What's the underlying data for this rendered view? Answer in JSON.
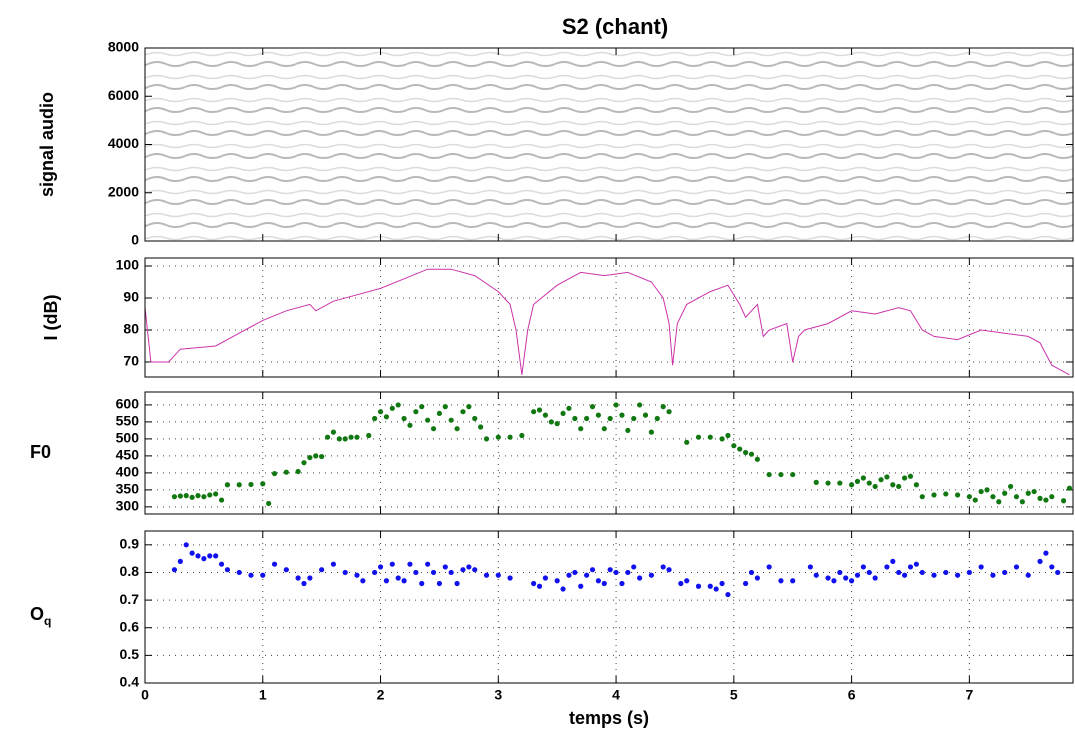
{
  "chart_data": [
    {
      "type": "spectrogram",
      "title": "S2   (chant)",
      "ylabel": "signal audio",
      "xlim": [
        0,
        7.88
      ],
      "xticks": [
        0,
        1,
        2,
        3,
        4,
        5,
        6,
        7
      ],
      "ylim": [
        0,
        8000
      ],
      "yticks": [
        0,
        2000,
        4000,
        6000,
        8000
      ],
      "grid": false
    },
    {
      "type": "line",
      "ylabel": "I (dB)",
      "color": "#cc33aa",
      "xlim": [
        0,
        7.88
      ],
      "xticks": [
        0,
        1,
        2,
        3,
        4,
        5,
        6,
        7
      ],
      "ylim": [
        65.3,
        102.5
      ],
      "yticks": [
        70,
        80,
        90,
        100
      ],
      "grid": true,
      "x": [
        0,
        0.05,
        0.2,
        0.3,
        0.6,
        0.8,
        1.0,
        1.2,
        1.4,
        1.45,
        1.6,
        1.8,
        2.0,
        2.2,
        2.4,
        2.6,
        2.8,
        3.0,
        3.1,
        3.15,
        3.2,
        3.25,
        3.3,
        3.5,
        3.7,
        3.9,
        4.1,
        4.3,
        4.4,
        4.45,
        4.48,
        4.52,
        4.6,
        4.8,
        4.95,
        5.05,
        5.1,
        5.2,
        5.25,
        5.3,
        5.45,
        5.5,
        5.55,
        5.6,
        5.8,
        6.0,
        6.2,
        6.4,
        6.5,
        6.6,
        6.7,
        6.9,
        7.1,
        7.3,
        7.5,
        7.6,
        7.7,
        7.85
      ],
      "values": [
        87,
        70,
        70,
        74,
        75,
        79,
        83,
        86,
        88,
        86,
        89,
        91,
        93,
        96,
        99,
        99,
        97,
        92,
        88,
        80,
        66,
        80,
        88,
        94,
        98,
        97,
        98,
        95,
        90,
        82,
        69,
        82,
        88,
        92,
        94,
        88,
        84,
        88,
        78,
        80,
        82,
        70,
        78,
        80,
        82,
        86,
        85,
        87,
        86,
        80,
        78,
        77,
        80,
        79,
        78,
        76,
        69,
        66
      ]
    },
    {
      "type": "scatter",
      "ylabel": "F0",
      "color": "#117711",
      "xlim": [
        0,
        7.88
      ],
      "xticks": [
        0,
        1,
        2,
        3,
        4,
        5,
        6,
        7
      ],
      "ylim": [
        279,
        638
      ],
      "yticks": [
        300,
        350,
        400,
        450,
        500,
        550,
        600
      ],
      "grid": true,
      "x": [
        0.25,
        0.3,
        0.35,
        0.4,
        0.45,
        0.5,
        0.55,
        0.6,
        0.65,
        0.7,
        0.8,
        0.9,
        1.0,
        1.05,
        1.1,
        1.2,
        1.3,
        1.35,
        1.4,
        1.45,
        1.5,
        1.55,
        1.6,
        1.65,
        1.7,
        1.75,
        1.8,
        1.9,
        1.95,
        2.0,
        2.05,
        2.1,
        2.15,
        2.2,
        2.25,
        2.3,
        2.35,
        2.4,
        2.45,
        2.5,
        2.55,
        2.6,
        2.65,
        2.7,
        2.75,
        2.8,
        2.85,
        2.9,
        3.0,
        3.1,
        3.2,
        3.3,
        3.35,
        3.4,
        3.45,
        3.5,
        3.55,
        3.6,
        3.65,
        3.7,
        3.75,
        3.8,
        3.85,
        3.9,
        3.95,
        4.0,
        4.05,
        4.1,
        4.15,
        4.2,
        4.25,
        4.3,
        4.35,
        4.4,
        4.45,
        4.6,
        4.7,
        4.8,
        4.9,
        4.95,
        5.0,
        5.05,
        5.1,
        5.15,
        5.2,
        5.3,
        5.4,
        5.5,
        5.7,
        5.8,
        5.9,
        6.0,
        6.05,
        6.1,
        6.15,
        6.2,
        6.25,
        6.3,
        6.35,
        6.4,
        6.45,
        6.5,
        6.55,
        6.6,
        6.7,
        6.8,
        6.9,
        7.0,
        7.05,
        7.1,
        7.15,
        7.2,
        7.25,
        7.3,
        7.35,
        7.4,
        7.45,
        7.5,
        7.55,
        7.6,
        7.65,
        7.7,
        7.8,
        7.85
      ],
      "values": [
        330,
        332,
        333,
        328,
        333,
        330,
        335,
        338,
        320,
        365,
        365,
        366,
        368,
        310,
        398,
        402,
        404,
        430,
        445,
        450,
        448,
        505,
        520,
        500,
        500,
        505,
        505,
        510,
        560,
        580,
        565,
        590,
        600,
        560,
        540,
        580,
        595,
        555,
        530,
        575,
        595,
        555,
        530,
        580,
        595,
        560,
        535,
        500,
        505,
        505,
        510,
        580,
        585,
        570,
        550,
        545,
        575,
        590,
        560,
        530,
        560,
        595,
        570,
        530,
        560,
        600,
        570,
        525,
        560,
        600,
        570,
        520,
        560,
        595,
        580,
        490,
        505,
        505,
        500,
        510,
        480,
        470,
        460,
        455,
        440,
        395,
        395,
        395,
        372,
        370,
        370,
        365,
        375,
        385,
        370,
        360,
        380,
        388,
        365,
        360,
        385,
        390,
        365,
        330,
        335,
        338,
        335,
        330,
        320,
        345,
        350,
        330,
        315,
        340,
        360,
        330,
        315,
        340,
        345,
        325,
        320,
        330,
        318,
        355
      ]
    },
    {
      "type": "scatter",
      "ylabel": "O",
      "ylabel_subscript": "q",
      "xlabel": "temps (s)",
      "color": "#1111ee",
      "xlim": [
        0,
        7.88
      ],
      "xticks": [
        0,
        1,
        2,
        3,
        4,
        5,
        6,
        7
      ],
      "ylim": [
        0.4,
        0.95
      ],
      "yticks": [
        0.4,
        0.5,
        0.6,
        0.7,
        0.8,
        0.9
      ],
      "grid": true,
      "x": [
        0.25,
        0.3,
        0.35,
        0.4,
        0.45,
        0.5,
        0.55,
        0.6,
        0.65,
        0.7,
        0.8,
        0.9,
        1.0,
        1.1,
        1.2,
        1.3,
        1.35,
        1.4,
        1.5,
        1.6,
        1.7,
        1.8,
        1.85,
        1.95,
        2.0,
        2.05,
        2.1,
        2.15,
        2.2,
        2.25,
        2.3,
        2.35,
        2.4,
        2.45,
        2.5,
        2.55,
        2.6,
        2.65,
        2.7,
        2.75,
        2.8,
        2.9,
        3.0,
        3.1,
        3.3,
        3.35,
        3.4,
        3.5,
        3.55,
        3.6,
        3.65,
        3.7,
        3.75,
        3.8,
        3.85,
        3.9,
        3.95,
        4.0,
        4.05,
        4.1,
        4.15,
        4.2,
        4.3,
        4.4,
        4.45,
        4.55,
        4.6,
        4.7,
        4.8,
        4.85,
        4.9,
        4.95,
        5.1,
        5.15,
        5.2,
        5.3,
        5.4,
        5.5,
        5.65,
        5.7,
        5.8,
        5.85,
        5.9,
        5.95,
        6.0,
        6.05,
        6.1,
        6.15,
        6.2,
        6.3,
        6.35,
        6.4,
        6.45,
        6.5,
        6.55,
        6.6,
        6.7,
        6.8,
        6.9,
        7.0,
        7.1,
        7.2,
        7.3,
        7.4,
        7.5,
        7.6,
        7.65,
        7.7,
        7.75
      ],
      "values": [
        0.81,
        0.84,
        0.9,
        0.87,
        0.86,
        0.85,
        0.86,
        0.86,
        0.83,
        0.81,
        0.8,
        0.79,
        0.79,
        0.83,
        0.81,
        0.78,
        0.76,
        0.78,
        0.81,
        0.83,
        0.8,
        0.79,
        0.77,
        0.8,
        0.82,
        0.77,
        0.83,
        0.78,
        0.77,
        0.83,
        0.8,
        0.76,
        0.83,
        0.8,
        0.76,
        0.82,
        0.8,
        0.76,
        0.81,
        0.82,
        0.81,
        0.79,
        0.79,
        0.78,
        0.76,
        0.75,
        0.78,
        0.77,
        0.74,
        0.79,
        0.8,
        0.75,
        0.79,
        0.81,
        0.77,
        0.76,
        0.81,
        0.8,
        0.76,
        0.8,
        0.82,
        0.78,
        0.79,
        0.82,
        0.81,
        0.76,
        0.77,
        0.75,
        0.75,
        0.74,
        0.76,
        0.72,
        0.76,
        0.8,
        0.78,
        0.82,
        0.77,
        0.77,
        0.82,
        0.79,
        0.78,
        0.77,
        0.8,
        0.78,
        0.77,
        0.79,
        0.82,
        0.8,
        0.78,
        0.82,
        0.84,
        0.8,
        0.79,
        0.82,
        0.83,
        0.8,
        0.79,
        0.8,
        0.79,
        0.8,
        0.82,
        0.79,
        0.8,
        0.82,
        0.79,
        0.84,
        0.87,
        0.82,
        0.8
      ]
    }
  ]
}
